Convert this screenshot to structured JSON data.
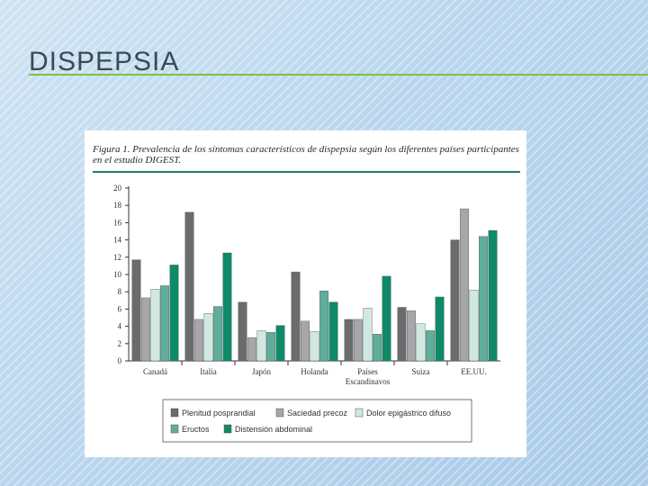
{
  "slide": {
    "title": "DISPEPSIA"
  },
  "figure": {
    "caption": "Figura 1. Prevalencia de los síntomas característicos de dispepsia según los diferentes países participantes en el estudio DIGEST."
  },
  "colors": {
    "title_rule": "#7cc242",
    "caption_rule": "#1f7c6a",
    "series": [
      "#6b6b6b",
      "#a7a7ab",
      "#cfe8e0",
      "#5fae9c",
      "#0e8a68"
    ]
  },
  "chart_data": {
    "type": "bar",
    "title": "",
    "xlabel": "",
    "ylabel": "",
    "ylim": [
      0,
      20
    ],
    "yticks": [
      0,
      2,
      4,
      6,
      8,
      10,
      12,
      14,
      16,
      18,
      20
    ],
    "grid": false,
    "legend_position": "bottom",
    "categories": [
      "Canadá",
      "Italia",
      "Japón",
      "Holanda",
      "Países\nEscandinavos",
      "Suiza",
      "EE.UU."
    ],
    "series": [
      {
        "name": "Plenitud posprandial",
        "values": [
          11.7,
          17.2,
          6.8,
          10.3,
          4.8,
          6.2,
          14.0
        ]
      },
      {
        "name": "Saciedad precoz",
        "values": [
          7.3,
          4.8,
          2.7,
          4.6,
          4.8,
          5.8,
          17.6
        ]
      },
      {
        "name": "Dolor epigástrico difuso",
        "values": [
          8.3,
          5.5,
          3.5,
          3.4,
          6.1,
          4.3,
          8.2
        ]
      },
      {
        "name": "Eructos",
        "values": [
          8.7,
          6.3,
          3.3,
          8.1,
          3.1,
          3.5,
          14.4
        ]
      },
      {
        "name": "Distensión abdominal",
        "values": [
          11.1,
          12.5,
          4.1,
          6.8,
          9.8,
          7.4,
          15.1
        ]
      }
    ]
  }
}
